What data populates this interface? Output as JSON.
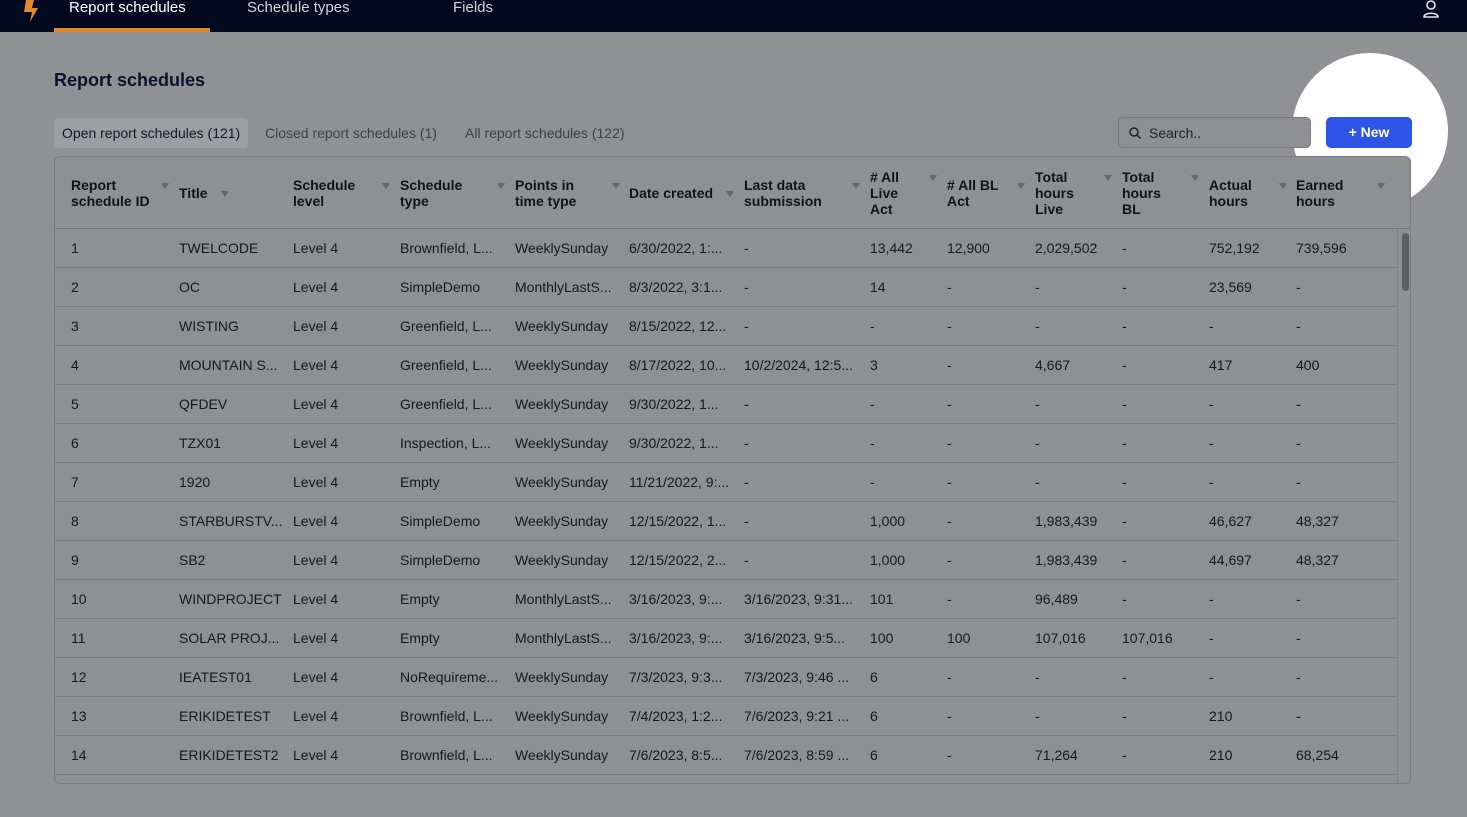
{
  "nav": {
    "tabs": [
      {
        "label": "Report schedules"
      },
      {
        "label": "Schedule types"
      },
      {
        "label": "Fields"
      }
    ]
  },
  "page_title": "Report schedules",
  "subtabs": [
    {
      "label": "Open report schedules (121)"
    },
    {
      "label": "Closed report schedules (1)"
    },
    {
      "label": "All report schedules (122)"
    }
  ],
  "search": {
    "placeholder": "Search.."
  },
  "new_button": {
    "label": "+ New"
  },
  "table": {
    "headers": [
      "Report schedule ID",
      "Title",
      "Schedule level",
      "Schedule type",
      "Points in time type",
      "Date created",
      "Last data submission",
      "# All Live Act",
      "# All BL Act",
      "Total hours Live",
      "Total hours BL",
      "Actual hours",
      "Earned hours"
    ],
    "rows": [
      [
        "1",
        "TWELCODE",
        "Level 4",
        "Brownfield, L...",
        "WeeklySunday",
        "6/30/2022, 1:...",
        "-",
        "13,442",
        "12,900",
        "2,029,502",
        "-",
        "752,192",
        "739,596"
      ],
      [
        "2",
        "OC",
        "Level 4",
        "SimpleDemo",
        "MonthlyLastS...",
        "8/3/2022, 3:1...",
        "-",
        "14",
        "-",
        "-",
        "-",
        "23,569",
        "-"
      ],
      [
        "3",
        "WISTING",
        "Level 4",
        "Greenfield, L...",
        "WeeklySunday",
        "8/15/2022, 12...",
        "-",
        "-",
        "-",
        "-",
        "-",
        "-",
        "-"
      ],
      [
        "4",
        "MOUNTAIN S...",
        "Level 4",
        "Greenfield, L...",
        "WeeklySunday",
        "8/17/2022, 10...",
        "10/2/2024, 12:5...",
        "3",
        "-",
        "4,667",
        "-",
        "417",
        "400"
      ],
      [
        "5",
        "QFDEV",
        "Level 4",
        "Greenfield, L...",
        "WeeklySunday",
        "9/30/2022, 1...",
        "-",
        "-",
        "-",
        "-",
        "-",
        "-",
        "-"
      ],
      [
        "6",
        "TZX01",
        "Level 4",
        "Inspection, L...",
        "WeeklySunday",
        "9/30/2022, 1...",
        "-",
        "-",
        "-",
        "-",
        "-",
        "-",
        "-"
      ],
      [
        "7",
        "1920",
        "Level 4",
        "Empty",
        "WeeklySunday",
        "11/21/2022, 9:...",
        "-",
        "-",
        "-",
        "-",
        "-",
        "-",
        "-"
      ],
      [
        "8",
        "STARBURSTV...",
        "Level 4",
        "SimpleDemo",
        "WeeklySunday",
        "12/15/2022, 1...",
        "-",
        "1,000",
        "-",
        "1,983,439",
        "-",
        "46,627",
        "48,327"
      ],
      [
        "9",
        "SB2",
        "Level 4",
        "SimpleDemo",
        "WeeklySunday",
        "12/15/2022, 2...",
        "-",
        "1,000",
        "-",
        "1,983,439",
        "-",
        "44,697",
        "48,327"
      ],
      [
        "10",
        "WINDPROJECT",
        "Level 4",
        "Empty",
        "MonthlyLastS...",
        "3/16/2023, 9:...",
        "3/16/2023, 9:31...",
        "101",
        "-",
        "96,489",
        "-",
        "-",
        "-"
      ],
      [
        "11",
        "SOLAR PROJ...",
        "Level 4",
        "Empty",
        "MonthlyLastS...",
        "3/16/2023, 9:...",
        "3/16/2023, 9:5...",
        "100",
        "100",
        "107,016",
        "107,016",
        "-",
        "-"
      ],
      [
        "12",
        "IEATEST01",
        "Level 4",
        "NoRequireme...",
        "WeeklySunday",
        "7/3/2023, 9:3...",
        "7/3/2023, 9:46 ...",
        "6",
        "-",
        "-",
        "-",
        "-",
        "-"
      ],
      [
        "13",
        "ERIKIDETEST",
        "Level 4",
        "Brownfield, L...",
        "WeeklySunday",
        "7/4/2023, 1:2...",
        "7/6/2023, 9:21 ...",
        "6",
        "-",
        "-",
        "-",
        "210",
        "-"
      ],
      [
        "14",
        "ERIKIDETEST2",
        "Level 4",
        "Brownfield, L...",
        "WeeklySunday",
        "7/6/2023, 8:5...",
        "7/6/2023, 8:59 ...",
        "6",
        "-",
        "71,264",
        "-",
        "210",
        "68,254"
      ]
    ]
  },
  "colors": {
    "topbar": "#02091f",
    "accent": "#e08a2d",
    "primary_button": "#2f55e6"
  }
}
